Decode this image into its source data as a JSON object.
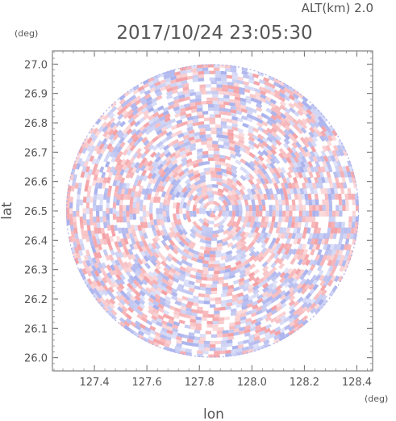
{
  "header": {
    "altitude": "ALT(km) 2.0",
    "datetime": "2017/10/24 23:05:30"
  },
  "chart_data": {
    "type": "heatmap",
    "title": "2017/10/24 23:05:30",
    "xlabel": "lon",
    "ylabel": "lat",
    "x_unit": "(deg)",
    "y_unit": "(deg)",
    "xlim": [
      127.24,
      128.46
    ],
    "ylim": [
      25.955,
      27.045
    ],
    "x_ticks": [
      "127.4",
      "127.6",
      "127.8",
      "128.0",
      "128.2",
      "128.4"
    ],
    "y_ticks": [
      "27.0",
      "26.9",
      "26.8",
      "26.7",
      "26.6",
      "26.5",
      "26.4",
      "26.3",
      "26.2",
      "26.1",
      "26.0"
    ],
    "domain_center": [
      127.85,
      26.5
    ],
    "domain_radius_deg_lat": 0.5,
    "colormap": {
      "positive": "#f4a0a4",
      "negative": "#a8b0ec",
      "zero": "#ffffff"
    },
    "grid": false
  }
}
